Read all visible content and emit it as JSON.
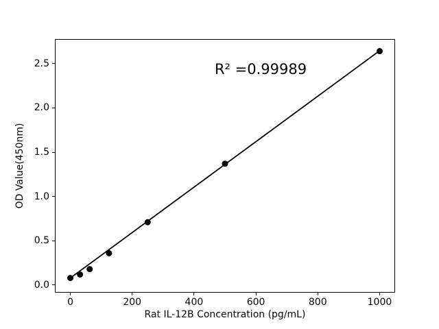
{
  "figure": {
    "background": "#ffffff",
    "foreground": "#000000"
  },
  "chart_data": {
    "type": "scatter",
    "title": "",
    "xlabel": "Rat IL-12B Concentration (pg/mL)",
    "ylabel": "OD Value(450nm)",
    "annotation": {
      "text": "R² =0.99989"
    },
    "x": [
      0,
      31.25,
      62.5,
      125,
      250,
      500,
      1000
    ],
    "y": [
      0.08,
      0.12,
      0.18,
      0.36,
      0.71,
      1.37,
      2.64
    ],
    "fit_line": {
      "x": [
        0,
        1000
      ],
      "y": [
        0.08,
        2.645
      ]
    },
    "x_tick_labels": [
      "0",
      "200",
      "400",
      "600",
      "800",
      "1000"
    ],
    "x_tick_values": [
      0,
      200,
      400,
      600,
      800,
      1000
    ],
    "y_tick_labels": [
      "0.0",
      "0.5",
      "1.0",
      "1.5",
      "2.0",
      "2.5"
    ],
    "y_tick_values": [
      0.0,
      0.5,
      1.0,
      1.5,
      2.0,
      2.5
    ],
    "xlim": [
      -50,
      1050
    ],
    "ylim": [
      -0.087,
      2.772
    ],
    "grid": false,
    "legend_position": "none",
    "marker_color": "#000000",
    "line_color": "#000000"
  }
}
